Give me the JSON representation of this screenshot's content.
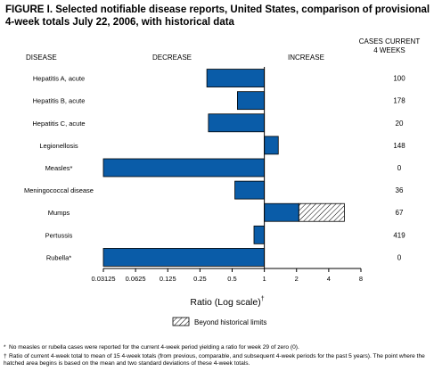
{
  "figure": {
    "title": "FIGURE I. Selected notifiable disease reports, United States, comparison of provisional 4-week totals July 22, 2006, with historical data"
  },
  "headers": {
    "disease": "DISEASE",
    "decrease": "DECREASE",
    "increase": "INCREASE",
    "cases_line1": "CASES CURRENT",
    "cases_line2": "4 WEEKS"
  },
  "legend": {
    "label": "Beyond historical limits"
  },
  "footnotes": [
    {
      "mark": "*",
      "text": "No measles or rubella cases were reported for the current 4-week period yielding a ratio for week 29 of zero (0)."
    },
    {
      "mark": "†",
      "text": "Ratio of current 4-week total to mean of 15 4-week totals (from previous, comparable, and subsequent 4-week periods for the past 5 years). The point where the hatched area begins is based on the mean and two standard deviations of these 4-week totals."
    }
  ],
  "colors": {
    "bar": "#0a5ca8",
    "hatch": "#000000"
  },
  "chart_data": {
    "type": "bar",
    "orientation": "horizontal",
    "xscale": "log2",
    "xlabel": "Ratio (Log scale)",
    "xlabel_mark": "†",
    "xlim": [
      0.03125,
      8
    ],
    "baseline": 1,
    "xticks": [
      0.03125,
      0.0625,
      0.125,
      0.25,
      0.5,
      1,
      2,
      4,
      8
    ],
    "xtick_labels": [
      "0.03125",
      "0.0625",
      "0.125",
      "0.25",
      "0.5",
      "1",
      "2",
      "4",
      "8"
    ],
    "categories": [
      "Hepatitis A, acute",
      "Hepatitis B, acute",
      "Hepatitis C, acute",
      "Legionellosis",
      "Measles*",
      "Meningococcal disease",
      "Mumps",
      "Pertussis",
      "Rubella*"
    ],
    "values": [
      0.29,
      0.56,
      0.3,
      1.35,
      0.03125,
      0.53,
      5.6,
      0.8,
      0.03125
    ],
    "historical_limit": [
      null,
      null,
      null,
      null,
      null,
      null,
      2.1,
      null,
      null
    ],
    "cases_current_4_weeks": [
      "100",
      "178",
      "20",
      "148",
      "0",
      "36",
      "67",
      "419",
      "0"
    ]
  }
}
